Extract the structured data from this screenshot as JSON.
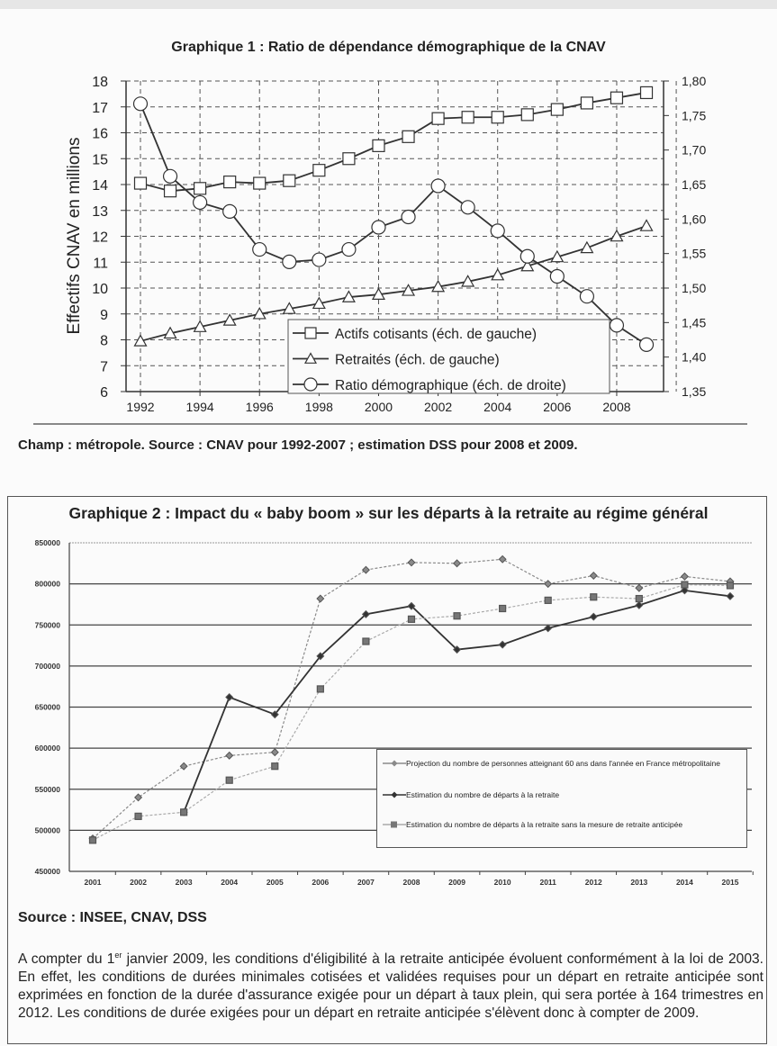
{
  "chart_data": [
    {
      "type": "line",
      "title": "Graphique 1 : Ratio de dépendance démographique de la CNAV",
      "ylabel": "Effectifs CNAV en millions",
      "y2label": "",
      "x": [
        1992,
        1993,
        1994,
        1995,
        1996,
        1997,
        1998,
        1999,
        2000,
        2001,
        2002,
        2003,
        2004,
        2005,
        2006,
        2007,
        2008,
        2009
      ],
      "xticks": [
        "1992",
        "1994",
        "1996",
        "1998",
        "2000",
        "2002",
        "2004",
        "2006",
        "2008"
      ],
      "ylim": [
        6,
        18
      ],
      "yticks": [
        "6",
        "7",
        "8",
        "9",
        "10",
        "11",
        "12",
        "13",
        "14",
        "15",
        "16",
        "17",
        "18"
      ],
      "y2lim": [
        1.35,
        1.8
      ],
      "y2ticks": [
        "1,35",
        "1,40",
        "1,45",
        "1,50",
        "1,55",
        "1,60",
        "1,65",
        "1,70",
        "1,75",
        "1,80"
      ],
      "grid": true,
      "legend_position": "bottom-center",
      "series": [
        {
          "name": "Actifs cotisants (éch. de gauche)",
          "axis": "left",
          "marker": "square",
          "values": [
            14.05,
            13.75,
            13.85,
            14.1,
            14.05,
            14.15,
            14.55,
            15.0,
            15.5,
            15.85,
            16.55,
            16.6,
            16.6,
            16.7,
            16.9,
            17.15,
            17.35,
            17.55
          ]
        },
        {
          "name": "Retraités (éch. de gauche)",
          "axis": "left",
          "marker": "triangle",
          "values": [
            7.95,
            8.25,
            8.5,
            8.75,
            9.0,
            9.2,
            9.4,
            9.65,
            9.75,
            9.9,
            10.05,
            10.25,
            10.5,
            10.85,
            11.2,
            11.55,
            12.0,
            12.4
          ]
        },
        {
          "name": "Ratio démographique (éch. de droite)",
          "axis": "right",
          "marker": "circle",
          "values": [
            1.767,
            1.662,
            1.624,
            1.611,
            1.556,
            1.538,
            1.541,
            1.556,
            1.588,
            1.603,
            1.648,
            1.617,
            1.583,
            1.546,
            1.517,
            1.488,
            1.446,
            1.418
          ]
        }
      ]
    },
    {
      "type": "line",
      "title": "Graphique 2 : Impact du « baby boom » sur les départs à la retraite au régime général",
      "xlabel": "",
      "ylabel": "",
      "x": [
        "2001",
        "2002",
        "2003",
        "2004",
        "2005",
        "2006",
        "2007",
        "2008",
        "2009",
        "2010",
        "2011",
        "2012",
        "2013",
        "2014",
        "2015"
      ],
      "ylim": [
        450000,
        850000
      ],
      "yticks": [
        "450000",
        "500000",
        "550000",
        "600000",
        "650000",
        "700000",
        "750000",
        "800000",
        "850000"
      ],
      "grid": true,
      "legend_position": "bottom-right",
      "series": [
        {
          "name": "Projection du nombre de personnes atteignant 60 ans dans l'année en France métropolitaine",
          "marker": "diamond",
          "color": "#8a8a8a",
          "values": [
            490000,
            540000,
            578000,
            591000,
            595000,
            782000,
            817000,
            826000,
            825000,
            830000,
            800000,
            810000,
            795000,
            809000,
            803000
          ]
        },
        {
          "name": "Estimation du nombre de départs à la retraite",
          "marker": "diamond",
          "color": "#333333",
          "values": [
            null,
            null,
            522000,
            662000,
            641000,
            712000,
            763000,
            773000,
            720000,
            726000,
            746000,
            760000,
            774000,
            792000,
            785000
          ]
        },
        {
          "name": "Estimation du nombre de départs à la retraite sans la mesure de retraite anticipée",
          "marker": "square",
          "color": "#aaaaaa",
          "values": [
            488000,
            517000,
            522000,
            561000,
            578000,
            672000,
            730000,
            757000,
            761000,
            770000,
            780000,
            784000,
            782000,
            799000,
            798000
          ]
        }
      ]
    }
  ],
  "notes": {
    "chart1_source": "Champ : métropole.  Source : CNAV pour 1992-2007 ; estimation DSS pour 2008 et 2009.",
    "chart2_source": "Source : INSEE, CNAV, DSS",
    "para_start": "A compter du 1",
    "para_sup": "er",
    "para_rest": " janvier 2009, les conditions d'éligibilité à la retraite anticipée évoluent conformément à la loi de 2003. En effet, les conditions de durées minimales cotisées et validées requises pour un départ en retraite anticipée sont exprimées en fonction de la durée d'assurance exigée pour un départ à taux plein, qui sera portée à 164 trimestres en 2012. Les conditions de durée exigées pour un départ en retraite anticipée s'élèvent donc à compter de 2009."
  }
}
